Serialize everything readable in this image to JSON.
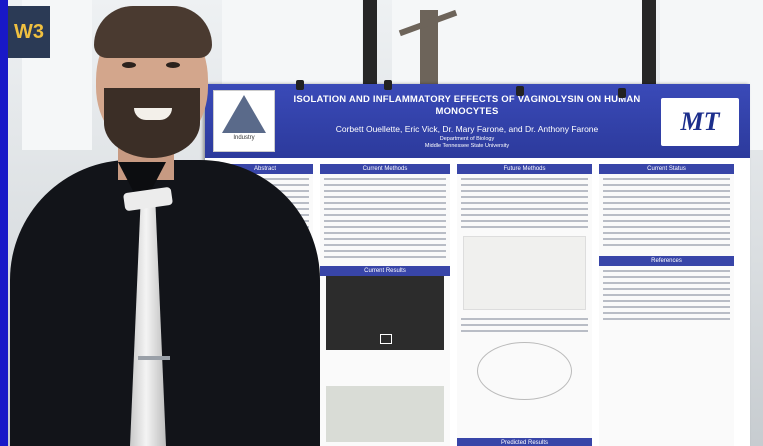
{
  "scene": {
    "sign_text": "W3"
  },
  "poster": {
    "title_line1": "ISOLATION AND INFLAMMATORY EFFECTS OF VAGINOLYSIN ON HUMAN",
    "title_line2": "MONOCYTES",
    "authors": "Corbett Ouellette, Eric Vick, Dr. Mary Farone, and Dr. Anthony Farone",
    "department": "Department of Biology",
    "university": "Middle Tennessee State University",
    "left_logo_text": "Industry",
    "right_logo": "MT",
    "sections": {
      "abstract": "Abstract",
      "current_methods": "Current Methods",
      "current_results": "Current Results",
      "future_methods": "Future Methods",
      "current_status": "Current Status",
      "references": "References",
      "predicted_results": "Predicted Results"
    }
  }
}
